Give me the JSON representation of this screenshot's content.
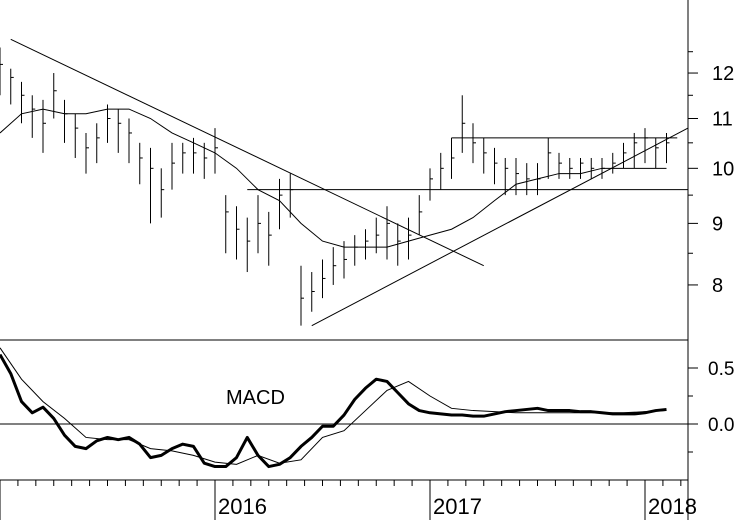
{
  "chart_data": [
    {
      "type": "line",
      "panel": "price",
      "y_scale": "log",
      "ylim": [
        7.2,
        13.8
      ],
      "y_ticks": [
        8,
        9,
        10,
        11,
        12
      ],
      "x_range": [
        2015.0,
        2018.2
      ],
      "x_ticks": [
        2016,
        2017,
        2018
      ],
      "grid": false,
      "series": [
        {
          "kind": "price-bars",
          "x": [
            2015.0,
            2015.05,
            2015.1,
            2015.15,
            2015.2,
            2015.25,
            2015.3,
            2015.35,
            2015.4,
            2015.45,
            2015.5,
            2015.55,
            2015.6,
            2015.65,
            2015.7,
            2015.75,
            2015.8,
            2015.85,
            2015.9,
            2015.95,
            2016.0,
            2016.05,
            2016.1,
            2016.15,
            2016.2,
            2016.25,
            2016.3,
            2016.35,
            2016.4,
            2016.45,
            2016.5,
            2016.55,
            2016.6,
            2016.65,
            2016.7,
            2016.75,
            2016.8,
            2016.85,
            2016.9,
            2016.95,
            2017.0,
            2017.05,
            2017.1,
            2017.15,
            2017.2,
            2017.25,
            2017.3,
            2017.35,
            2017.4,
            2017.45,
            2017.5,
            2017.55,
            2017.6,
            2017.65,
            2017.7,
            2017.75,
            2017.8,
            2017.85,
            2017.9,
            2017.95,
            2018.0,
            2018.05,
            2018.1
          ],
          "y": [
            12.2,
            11.9,
            11.5,
            11.2,
            10.9,
            11.6,
            11.1,
            10.8,
            10.4,
            10.6,
            11.0,
            10.9,
            10.7,
            10.2,
            10.0,
            9.6,
            10.1,
            10.3,
            10.3,
            10.2,
            10.4,
            9.2,
            8.9,
            8.7,
            9.0,
            8.8,
            9.5,
            9.6,
            7.8,
            7.9,
            8.1,
            8.3,
            8.4,
            8.6,
            8.7,
            8.8,
            9.0,
            8.7,
            8.8,
            9.2,
            9.8,
            10.0,
            10.2,
            10.9,
            10.5,
            10.3,
            10.1,
            10.0,
            9.9,
            9.8,
            9.8,
            10.3,
            10.1,
            10.0,
            10.1,
            10.0,
            10.0,
            10.1,
            10.3,
            10.5,
            10.6,
            10.4,
            10.5
          ],
          "low": [
            11.5,
            11.3,
            10.9,
            10.6,
            10.3,
            11.0,
            10.5,
            10.2,
            9.9,
            10.1,
            10.5,
            10.3,
            10.1,
            9.7,
            9.0,
            9.1,
            9.6,
            9.9,
            9.9,
            9.8,
            9.9,
            8.5,
            8.4,
            8.2,
            8.5,
            8.3,
            8.9,
            9.1,
            7.4,
            7.6,
            7.8,
            8.0,
            8.1,
            8.3,
            8.4,
            8.5,
            8.4,
            8.3,
            8.4,
            8.8,
            9.4,
            9.6,
            9.8,
            10.3,
            10.1,
            9.9,
            9.7,
            9.5,
            9.5,
            9.5,
            9.5,
            9.8,
            9.8,
            9.8,
            9.8,
            9.8,
            9.8,
            9.9,
            10.0,
            10.0,
            10.1,
            10.0,
            10.1
          ],
          "high": [
            12.6,
            12.1,
            11.8,
            11.5,
            11.4,
            12.0,
            11.4,
            11.1,
            10.7,
            10.9,
            11.3,
            11.2,
            11.0,
            10.5,
            10.4,
            10.0,
            10.5,
            10.5,
            10.6,
            10.5,
            10.8,
            9.5,
            9.3,
            9.1,
            9.5,
            9.2,
            9.8,
            9.9,
            8.3,
            8.2,
            8.4,
            8.6,
            8.7,
            8.8,
            8.9,
            9.1,
            9.3,
            9.0,
            9.1,
            9.5,
            10.0,
            10.3,
            10.6,
            11.5,
            10.9,
            10.6,
            10.4,
            10.2,
            10.2,
            10.1,
            10.1,
            10.6,
            10.3,
            10.2,
            10.2,
            10.2,
            10.2,
            10.3,
            10.5,
            10.7,
            10.8,
            10.6,
            10.7
          ]
        },
        {
          "kind": "moving-average",
          "x": [
            2015.0,
            2015.1,
            2015.2,
            2015.3,
            2015.4,
            2015.5,
            2015.6,
            2015.7,
            2015.8,
            2015.9,
            2016.0,
            2016.1,
            2016.2,
            2016.3,
            2016.4,
            2016.5,
            2016.6,
            2016.7,
            2016.8,
            2016.9,
            2017.0,
            2017.1,
            2017.2,
            2017.3,
            2017.4,
            2017.5,
            2017.6,
            2017.7,
            2017.8,
            2017.9,
            2018.0,
            2018.1
          ],
          "y": [
            10.7,
            11.1,
            11.2,
            11.1,
            11.1,
            11.2,
            11.2,
            11.0,
            10.7,
            10.5,
            10.3,
            10.0,
            9.6,
            9.4,
            9.0,
            8.7,
            8.6,
            8.6,
            8.6,
            8.7,
            8.8,
            8.9,
            9.1,
            9.4,
            9.7,
            9.8,
            9.9,
            9.9,
            10.0,
            10.0,
            10.0,
            10.0
          ]
        }
      ],
      "trendlines": [
        {
          "kind": "downtrend",
          "x": [
            2015.05,
            2017.25
          ],
          "y": [
            12.8,
            8.3
          ]
        },
        {
          "kind": "uptrend",
          "x": [
            2016.45,
            2018.2
          ],
          "y": [
            7.4,
            10.8
          ]
        },
        {
          "kind": "horizontal",
          "x": [
            2016.15,
            2018.2
          ],
          "y": [
            9.6,
            9.6
          ]
        },
        {
          "kind": "horizontal",
          "x": [
            2017.1,
            2018.15
          ],
          "y": [
            10.6,
            10.6
          ]
        }
      ]
    },
    {
      "type": "line",
      "panel": "indicator",
      "title": "MACD",
      "ylim": [
        -0.5,
        0.75
      ],
      "y_ticks": [
        "0.5",
        "0.0"
      ],
      "x_range": [
        2015.0,
        2018.2
      ],
      "grid": false,
      "zero_line": true,
      "series": [
        {
          "kind": "macd",
          "x": [
            2015.0,
            2015.05,
            2015.1,
            2015.15,
            2015.2,
            2015.25,
            2015.3,
            2015.35,
            2015.4,
            2015.45,
            2015.5,
            2015.55,
            2015.6,
            2015.65,
            2015.7,
            2015.75,
            2015.8,
            2015.85,
            2015.9,
            2015.95,
            2016.0,
            2016.05,
            2016.1,
            2016.15,
            2016.2,
            2016.25,
            2016.3,
            2016.35,
            2016.4,
            2016.45,
            2016.5,
            2016.55,
            2016.6,
            2016.65,
            2016.7,
            2016.75,
            2016.8,
            2016.85,
            2016.9,
            2016.95,
            2017.0,
            2017.05,
            2017.1,
            2017.15,
            2017.2,
            2017.25,
            2017.3,
            2017.35,
            2017.4,
            2017.45,
            2017.5,
            2017.55,
            2017.6,
            2017.65,
            2017.7,
            2017.75,
            2017.8,
            2017.85,
            2017.9,
            2017.95,
            2018.0,
            2018.05,
            2018.1
          ],
          "y": [
            0.62,
            0.45,
            0.2,
            0.1,
            0.15,
            0.05,
            -0.1,
            -0.2,
            -0.22,
            -0.15,
            -0.12,
            -0.14,
            -0.12,
            -0.18,
            -0.3,
            -0.28,
            -0.22,
            -0.18,
            -0.2,
            -0.35,
            -0.38,
            -0.38,
            -0.3,
            -0.12,
            -0.28,
            -0.38,
            -0.36,
            -0.3,
            -0.2,
            -0.12,
            -0.02,
            -0.02,
            0.08,
            0.22,
            0.32,
            0.4,
            0.38,
            0.28,
            0.18,
            0.12,
            0.1,
            0.09,
            0.08,
            0.08,
            0.07,
            0.07,
            0.09,
            0.11,
            0.12,
            0.13,
            0.14,
            0.12,
            0.12,
            0.12,
            0.11,
            0.11,
            0.1,
            0.09,
            0.09,
            0.09,
            0.1,
            0.12,
            0.13
          ]
        },
        {
          "kind": "signal",
          "x": [
            2015.0,
            2015.1,
            2015.2,
            2015.3,
            2015.4,
            2015.5,
            2015.6,
            2015.7,
            2015.8,
            2015.9,
            2016.0,
            2016.1,
            2016.2,
            2016.3,
            2016.4,
            2016.5,
            2016.6,
            2016.7,
            2016.8,
            2016.9,
            2017.0,
            2017.1,
            2017.2,
            2017.3,
            2017.4,
            2017.5,
            2017.6,
            2017.7,
            2017.8,
            2017.9,
            2018.0,
            2018.1
          ],
          "y": [
            0.68,
            0.4,
            0.2,
            0.05,
            -0.12,
            -0.14,
            -0.14,
            -0.22,
            -0.24,
            -0.28,
            -0.34,
            -0.36,
            -0.28,
            -0.35,
            -0.32,
            -0.12,
            -0.06,
            0.12,
            0.3,
            0.38,
            0.25,
            0.14,
            0.12,
            0.11,
            0.1,
            0.1,
            0.1,
            0.1,
            0.1,
            0.1,
            0.11,
            0.12
          ]
        }
      ]
    }
  ]
}
